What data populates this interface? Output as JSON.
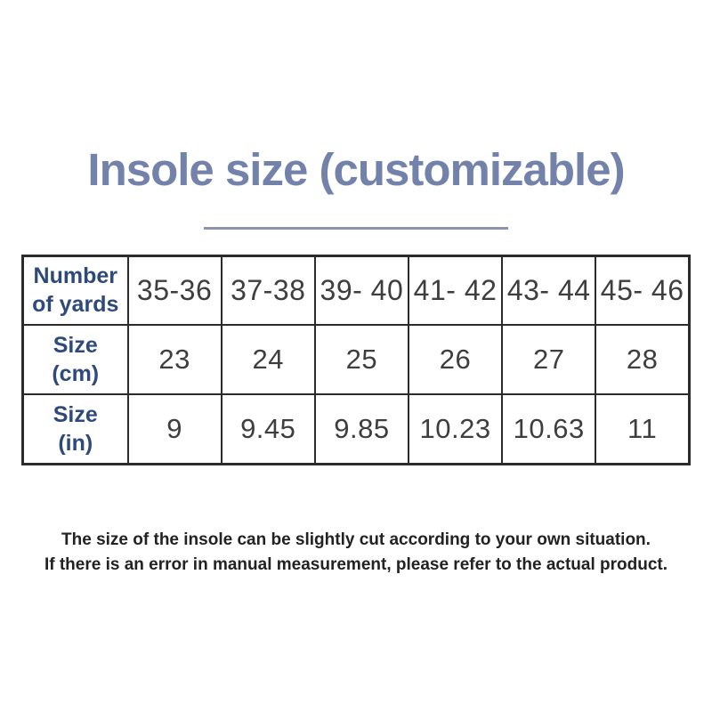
{
  "page": {
    "background": "#ffffff",
    "title_color": "#7282aa",
    "divider_color": "#8b95b2",
    "row_header_color": "#2e4a7b",
    "cell_text_color": "#3e3e3e",
    "table_border_color": "#2b2b2b"
  },
  "title": "Insole size (customizable)",
  "table": {
    "rows": [
      {
        "label_line1": "Number",
        "label_line2": "of yards",
        "cells": [
          "35-36",
          "37-38",
          "39- 40",
          "41- 42",
          "43- 44",
          "45- 46"
        ]
      },
      {
        "label_line1": "Size",
        "label_line2": "(cm)",
        "cells": [
          "23",
          "24",
          "25",
          "26",
          "27",
          "28"
        ]
      },
      {
        "label_line1": "Size",
        "label_line2": "(in)",
        "cells": [
          "9",
          "9.45",
          "9.85",
          "10.23",
          "10.63",
          "11"
        ]
      }
    ]
  },
  "footer": {
    "line1": "The size of the insole can be slightly cut according to your own situation.",
    "line2": "If there is an error in manual measurement, please refer to the actual product."
  },
  "chart_data": {
    "type": "table",
    "title": "Insole size (customizable)",
    "columns": [
      "Number of yards",
      "Size (cm)",
      "Size (in)"
    ],
    "rows": [
      {
        "number_of_yards": "35-36",
        "size_cm": 23,
        "size_in": 9
      },
      {
        "number_of_yards": "37-38",
        "size_cm": 24,
        "size_in": 9.45
      },
      {
        "number_of_yards": "39-40",
        "size_cm": 25,
        "size_in": 9.85
      },
      {
        "number_of_yards": "41-42",
        "size_cm": 26,
        "size_in": 10.23
      },
      {
        "number_of_yards": "43-44",
        "size_cm": 27,
        "size_in": 10.63
      },
      {
        "number_of_yards": "45-46",
        "size_cm": 28,
        "size_in": 11
      }
    ],
    "notes": [
      "The size of the insole can be slightly cut according to your own situation.",
      "If there is an error in manual measurement, please refer to the actual product."
    ]
  }
}
